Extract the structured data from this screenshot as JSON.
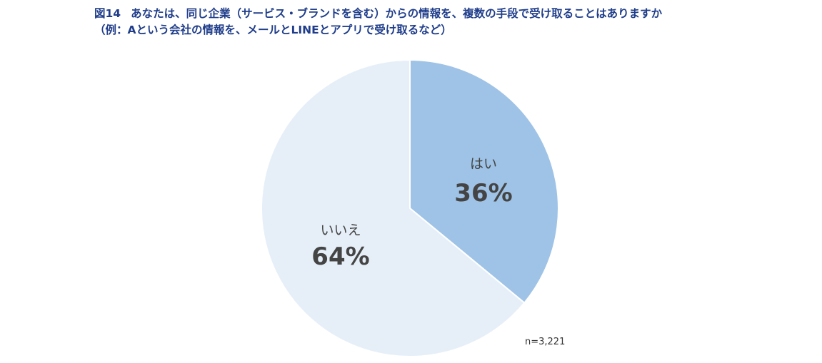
{
  "title": {
    "figure_label": "図14",
    "line1": "あなたは、同じ企業（サービス・ブランドを含む）からの情報を、複数の手段で受け取ることはありますか",
    "line2": "（例：Aという会社の情報を、メールとLINEとアプリで受け取るなど）"
  },
  "chart_data": {
    "type": "pie",
    "slices": [
      {
        "label": "はい",
        "value": 36,
        "value_label": "36%",
        "color": "#9fc3e6"
      },
      {
        "label": "いいえ",
        "value": 64,
        "value_label": "64%",
        "color": "#e6eff8"
      }
    ],
    "start": "12 o'clock",
    "direction": "clockwise",
    "slice_border_color": "#ffffff"
  },
  "note": "n=3,221"
}
